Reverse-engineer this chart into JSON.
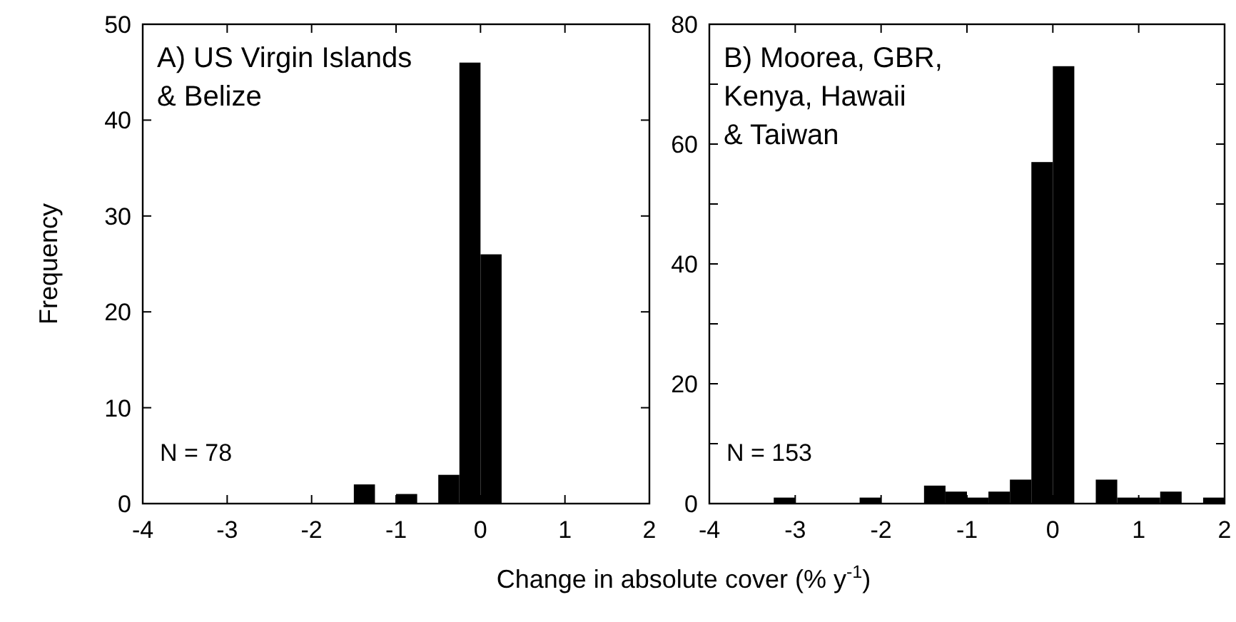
{
  "chart_data": [
    {
      "type": "histogram",
      "title": "A) US Virgin Islands & Belize",
      "ylabel": "Frequency",
      "xlabel": "Change in absolute cover (% y$^{-1}$)",
      "bins": [
        -4,
        -3.75,
        -3.5,
        -3.25,
        -3,
        -2.75,
        -2.5,
        -2.25,
        -2,
        -1.75,
        -1.5,
        -1.25,
        -1,
        -0.75,
        -0.5,
        -0.25,
        0,
        0.25,
        0.5,
        0.75,
        1,
        1.25,
        1.5,
        1.75,
        2
      ],
      "values": [
        0,
        0,
        0,
        0,
        0,
        0,
        0,
        0,
        0,
        0,
        2,
        0,
        1,
        0,
        3,
        46,
        26,
        0,
        0,
        0,
        0,
        0,
        0,
        0
      ],
      "color": "#000000",
      "xlim": [
        -4,
        2
      ],
      "xticks": [
        -4,
        -3,
        -2,
        -1,
        0,
        1,
        2
      ],
      "ylim": [
        0,
        50
      ],
      "yticks": [
        0,
        10,
        20,
        30,
        40,
        50
      ],
      "annotations": [
        "N = 78"
      ],
      "grid": false
    },
    {
      "type": "histogram",
      "title": "B) Moorea, GBR, Kenya, Hawaii & Taiwan",
      "bins": [
        -4,
        -3.75,
        -3.5,
        -3.25,
        -3,
        -2.75,
        -2.5,
        -2.25,
        -2,
        -1.75,
        -1.5,
        -1.25,
        -1,
        -0.75,
        -0.5,
        -0.25,
        0,
        0.25,
        0.5,
        0.75,
        1,
        1.25,
        1.5,
        1.75,
        2
      ],
      "values": [
        0,
        0,
        0,
        1,
        0,
        0,
        0,
        1,
        0,
        0,
        3,
        2,
        1,
        2,
        4,
        57,
        73,
        0,
        4,
        1,
        1,
        2,
        0,
        1
      ],
      "color": "#000000",
      "xlim": [
        -4,
        2
      ],
      "xticks": [
        -4,
        -3,
        -2,
        -1,
        0,
        1,
        2
      ],
      "ylim": [
        0,
        80
      ],
      "yticks": [
        0,
        {
          "value": 10,
          "label": null
        },
        20,
        {
          "value": 30,
          "label": null
        },
        40,
        {
          "value": 50,
          "label": null
        },
        60,
        {
          "value": 70,
          "label": null
        },
        80
      ],
      "annotations": [
        "N = 153"
      ],
      "grid": false
    }
  ]
}
